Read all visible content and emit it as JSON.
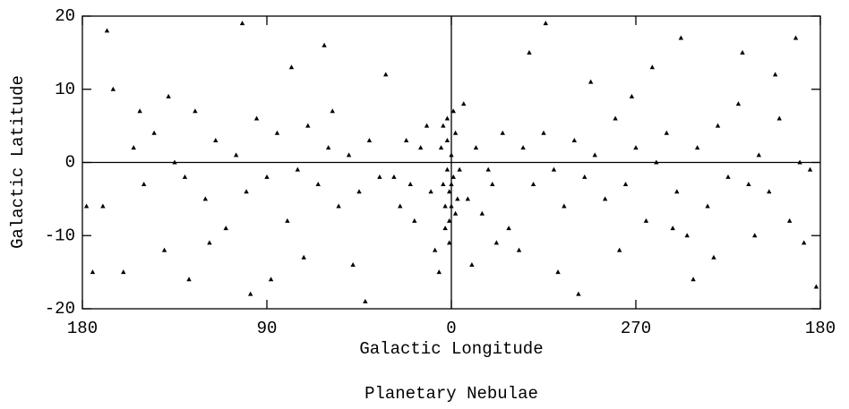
{
  "chart_data": {
    "type": "scatter",
    "title": "Planetary Nebulae",
    "x_label": "Galactic Longitude",
    "y_label": "Galactic Latitude",
    "xlim": [
      180,
      -180
    ],
    "ylim": [
      -20,
      20
    ],
    "xticks": [
      {
        "value": 180,
        "label": "180"
      },
      90,
      0,
      {
        "value": -90,
        "label": "270"
      },
      {
        "value": -180,
        "label": "180"
      }
    ],
    "yticks": [
      -20,
      -10,
      0,
      10,
      20
    ],
    "zero_lines": true,
    "marker": "triangle",
    "series": [
      {
        "color": "#000000",
        "x": [
          2,
          1,
          -1,
          3,
          0,
          -2,
          4,
          1,
          -3,
          2,
          0,
          5,
          -4,
          1,
          -1,
          3,
          0,
          -2,
          4,
          2,
          10,
          15,
          20,
          25,
          8,
          12,
          18,
          28,
          6,
          22,
          -8,
          -12,
          -15,
          -20,
          -25,
          -10,
          -18,
          -28,
          -6,
          -22,
          35,
          40,
          45,
          50,
          55,
          60,
          65,
          70,
          75,
          80,
          85,
          90,
          95,
          100,
          105,
          110,
          115,
          120,
          125,
          130,
          135,
          140,
          145,
          150,
          155,
          160,
          165,
          170,
          175,
          32,
          48,
          62,
          78,
          88,
          102,
          118,
          138,
          152,
          168,
          178,
          42,
          58,
          72,
          98,
          128,
          -35,
          -40,
          -45,
          -50,
          -55,
          -60,
          -65,
          -70,
          -75,
          -80,
          -85,
          -90,
          -95,
          -100,
          -105,
          -110,
          -115,
          -120,
          -125,
          -130,
          -135,
          -140,
          -145,
          -150,
          -155,
          -160,
          -165,
          -170,
          -175,
          -38,
          -52,
          -68,
          -82,
          -98,
          -112,
          -128,
          -142,
          -158,
          -172,
          -178,
          -46,
          -62,
          -88,
          -108,
          -168,
          -33,
          -118,
          -148
        ],
        "values": [
          3,
          -4,
          -2,
          -6,
          1,
          4,
          -3,
          -8,
          -5,
          6,
          -3,
          2,
          -1,
          -11,
          7,
          -9,
          -6,
          -7,
          5,
          -1,
          -4,
          2,
          -3,
          -6,
          -12,
          5,
          -8,
          -2,
          -15,
          3,
          -5,
          2,
          -7,
          -3,
          4,
          -14,
          -1,
          -9,
          8,
          -11,
          -2,
          3,
          -4,
          1,
          -6,
          2,
          -3,
          5,
          -1,
          -8,
          4,
          -2,
          6,
          -4,
          1,
          -9,
          3,
          -5,
          7,
          -2,
          0,
          -12,
          4,
          -3,
          2,
          -15,
          10,
          -6,
          -15,
          12,
          -14,
          16,
          13,
          -16,
          19,
          -11,
          9,
          7,
          18,
          -6,
          -19,
          7,
          -13,
          -18,
          -16,
          2,
          -3,
          4,
          -1,
          -6,
          3,
          -2,
          1,
          -5,
          6,
          -3,
          2,
          -8,
          0,
          4,
          -4,
          -10,
          2,
          -6,
          5,
          -2,
          8,
          -3,
          1,
          -4,
          6,
          -8,
          0,
          -1,
          15,
          -15,
          11,
          -12,
          13,
          17,
          -13,
          15,
          12,
          -11,
          -17,
          19,
          -18,
          9,
          -9,
          17,
          -12,
          -16,
          -10
        ]
      }
    ]
  }
}
